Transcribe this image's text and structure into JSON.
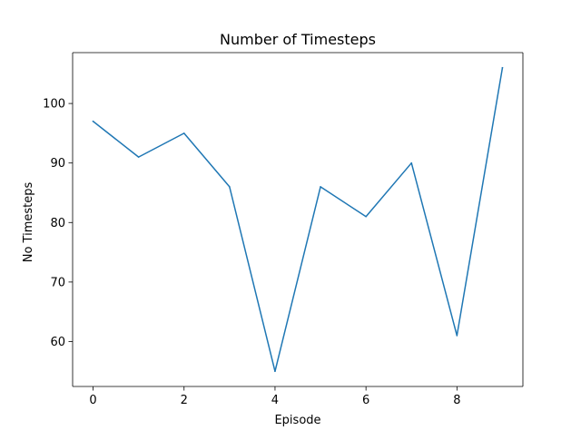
{
  "chart_data": {
    "type": "line",
    "title": "Number of Timesteps",
    "xlabel": "Episode",
    "ylabel": "No Timesteps",
    "x": [
      0,
      1,
      2,
      3,
      4,
      5,
      6,
      7,
      8,
      9
    ],
    "series": [
      {
        "values": [
          97,
          91,
          95,
          86,
          55,
          86,
          81,
          90,
          61,
          106
        ],
        "color": "#1f77b4"
      }
    ],
    "xticks": [
      0,
      2,
      4,
      6,
      8
    ],
    "yticks": [
      60,
      70,
      80,
      90,
      100
    ],
    "xlim": [
      -0.45,
      9.45
    ],
    "ylim": [
      52.45,
      108.55
    ],
    "grid": false,
    "legend": "none"
  }
}
